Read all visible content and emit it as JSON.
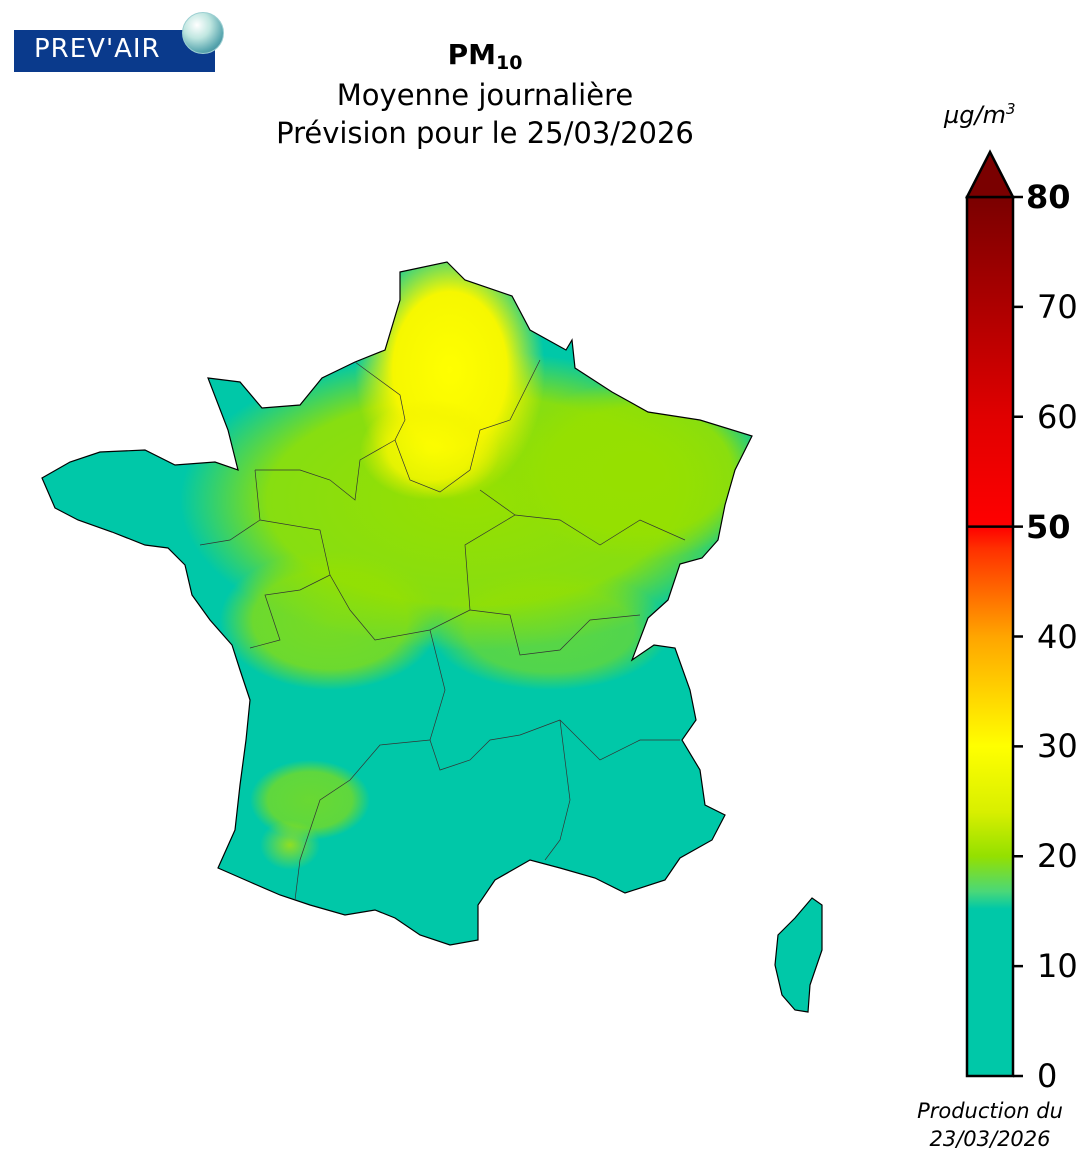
{
  "logo": {
    "text": "PREV'AIR"
  },
  "title": {
    "pollutant": "PM",
    "pollutant_sub": "10",
    "line2": "Moyenne journalière",
    "line3": "Prévision pour le 25/03/2026"
  },
  "colorbar": {
    "unit_main": "µg/m",
    "unit_sup": "3",
    "min": 0,
    "max": 80,
    "ticks": [
      "0",
      "10",
      "20",
      "30",
      "40",
      "50",
      "60",
      "70",
      "80"
    ],
    "bold_ticks": [
      "50",
      "80"
    ],
    "threshold": 50,
    "colors": {
      "low": "#00c8a8",
      "green": "#94e000",
      "yellow": "#ffff00",
      "orange": "#ffa500",
      "red": "#ff0000",
      "dark_red": "#7a0000"
    }
  },
  "footer": {
    "line1": "Production du",
    "line2": "23/03/2026"
  }
}
